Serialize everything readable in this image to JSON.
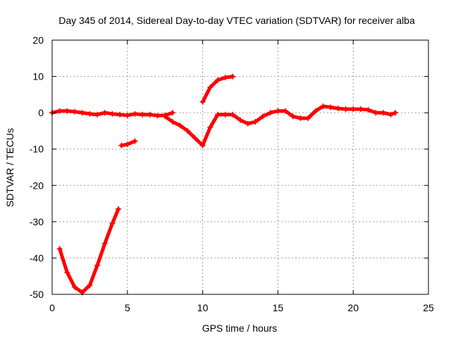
{
  "chart_data": {
    "type": "line",
    "title": "Day 345 of 2014, Sidereal Day-to-day VTEC variation (SDTVAR) for receiver alba",
    "xlabel": "GPS time / hours",
    "ylabel": "SDTVAR / TECUs",
    "xlim": [
      0,
      25
    ],
    "ylim": [
      -50,
      20
    ],
    "xticks": [
      0,
      5,
      10,
      15,
      20,
      25
    ],
    "yticks": [
      20,
      10,
      0,
      -10,
      -20,
      -30,
      -40,
      -50
    ],
    "grid": true,
    "series_color": "#ff0000",
    "series": [
      {
        "name": "segment-1",
        "x": [
          0.0,
          0.5,
          1.0,
          1.5,
          2.0,
          2.5,
          3.0,
          3.5,
          4.0,
          4.5,
          5.0,
          5.5,
          6.0,
          6.5,
          7.0,
          7.5,
          8.0
        ],
        "y": [
          0.0,
          0.5,
          0.5,
          0.3,
          0.0,
          -0.3,
          -0.5,
          0.0,
          -0.3,
          -0.5,
          -0.7,
          -0.3,
          -0.5,
          -0.5,
          -0.8,
          -0.7,
          0.0
        ]
      },
      {
        "name": "segment-2",
        "x": [
          0.5,
          1.0,
          1.5,
          2.0,
          2.5,
          3.0,
          3.5,
          4.0,
          4.4
        ],
        "y": [
          -37.5,
          -44.0,
          -48.0,
          -49.5,
          -47.5,
          -42.0,
          -36.0,
          -30.5,
          -26.5
        ]
      },
      {
        "name": "segment-3",
        "x": [
          4.6,
          5.0,
          5.5
        ],
        "y": [
          -9.0,
          -8.7,
          -7.8
        ]
      },
      {
        "name": "segment-4",
        "x": [
          7.5,
          8.0,
          8.5,
          9.0,
          9.5,
          10.0,
          10.5,
          11.0,
          11.5,
          12.0,
          12.5,
          13.0,
          13.5,
          14.0,
          14.5,
          15.0,
          15.5,
          16.0,
          16.5,
          17.0,
          17.5,
          18.0,
          18.5,
          19.0,
          19.5,
          20.0,
          20.5,
          21.0,
          21.5,
          22.0,
          22.5,
          22.8
        ],
        "y": [
          -1.0,
          -2.5,
          -3.5,
          -5.0,
          -7.0,
          -9.0,
          -4.0,
          -0.5,
          -0.5,
          -0.5,
          -2.0,
          -3.0,
          -2.5,
          -1.0,
          0.0,
          0.5,
          0.5,
          -1.0,
          -1.5,
          -1.5,
          0.5,
          1.8,
          1.5,
          1.2,
          1.0,
          1.0,
          1.0,
          0.8,
          0.0,
          0.0,
          -0.5,
          0.0
        ]
      },
      {
        "name": "segment-5",
        "x": [
          10.0,
          10.5,
          11.0,
          11.5,
          12.0
        ],
        "y": [
          3.0,
          7.0,
          9.0,
          9.7,
          10.0
        ]
      }
    ]
  }
}
